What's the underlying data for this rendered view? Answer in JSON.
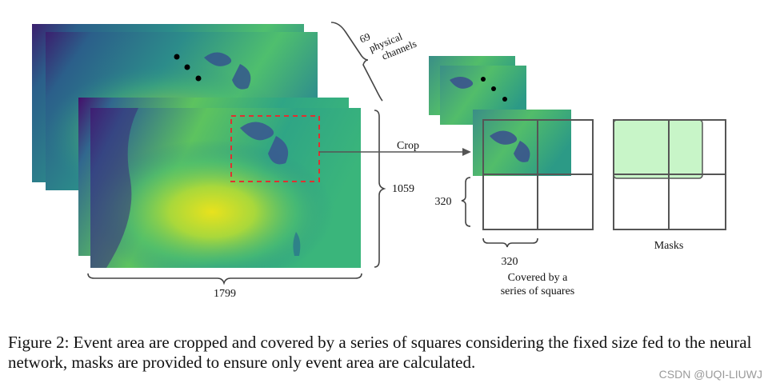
{
  "diagram": {
    "channels_label": [
      "69",
      "physical",
      "channels"
    ],
    "height_label": "1059",
    "width_label": "1799",
    "crop_label": "Crop",
    "square_height_label": "320",
    "square_width_label": "320",
    "covered_label": [
      "Covered by a",
      "series of squares"
    ],
    "masks_label": "Masks",
    "colors": {
      "map_low": "#440154",
      "map_mid": "#21918c",
      "map_high": "#fde725",
      "crop_box": "#e03030",
      "mask_fill": "#c8f5c8",
      "grid_stroke": "#555555"
    }
  },
  "caption": "Figure 2: Event area are cropped and covered by a series of squares considering the fixed size fed to the neural network, masks are provided to ensure only event area are calculated.",
  "watermark": "CSDN @UQI-LIUWJ"
}
